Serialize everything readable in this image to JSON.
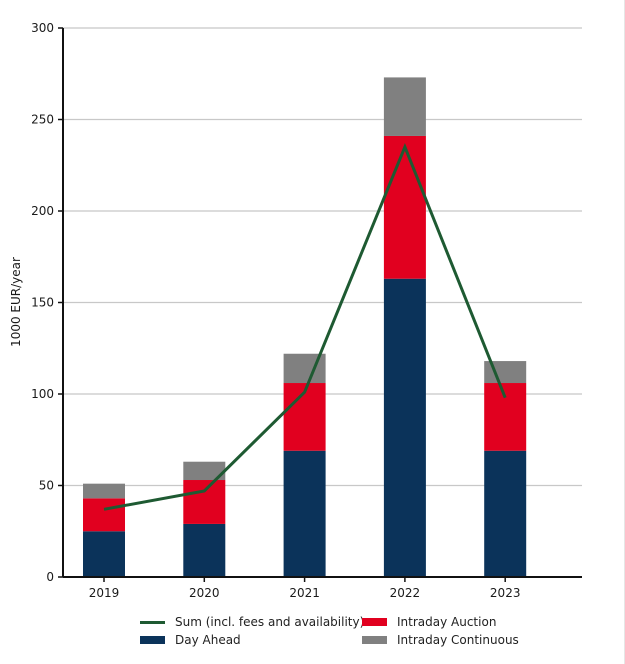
{
  "chart_data": {
    "type": "bar",
    "stacked": true,
    "title": "",
    "xlabel": "",
    "ylabel": "1000 EUR/year",
    "ylim": [
      0,
      300
    ],
    "yticks": [
      0,
      50,
      100,
      150,
      200,
      250,
      300
    ],
    "grid": true,
    "categories": [
      "2019",
      "2020",
      "2021",
      "2022",
      "2023"
    ],
    "series": [
      {
        "name": "Day Ahead",
        "type": "bar",
        "color": "#0b335a",
        "values": [
          25,
          29,
          69,
          163,
          69
        ]
      },
      {
        "name": "Intraday Auction",
        "type": "bar",
        "color": "#e1001f",
        "values": [
          18,
          24,
          37,
          78,
          37
        ]
      },
      {
        "name": "Intraday Continuous",
        "type": "bar",
        "color": "#808080",
        "values": [
          8,
          10,
          16,
          32,
          12
        ]
      },
      {
        "name": "Sum (incl. fees and availability)",
        "type": "line",
        "color": "#1e5a32",
        "values": [
          37,
          47,
          101,
          235,
          98
        ]
      }
    ],
    "legend_position": "bottom"
  },
  "legend": {
    "items": [
      {
        "label": "Sum (incl. fees and availability)",
        "kind": "line",
        "color": "#1e5a32"
      },
      {
        "label": "Intraday Auction",
        "kind": "box",
        "color": "#e1001f"
      },
      {
        "label": "Day Ahead",
        "kind": "box",
        "color": "#0b335a"
      },
      {
        "label": "Intraday Continuous",
        "kind": "box",
        "color": "#808080"
      }
    ]
  }
}
